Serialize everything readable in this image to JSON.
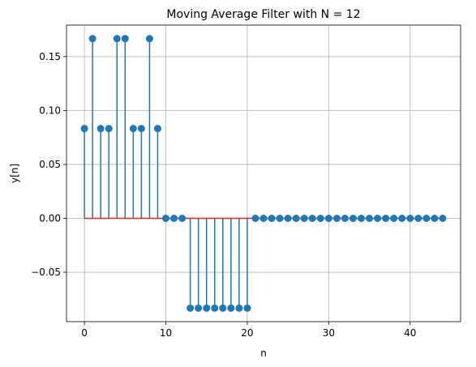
{
  "chart_data": {
    "type": "stem",
    "title": "Moving Average Filter with N = 12",
    "xlabel": "n",
    "ylabel": "y[n]",
    "x": [
      0,
      1,
      2,
      3,
      4,
      5,
      6,
      7,
      8,
      9,
      10,
      11,
      12,
      13,
      14,
      15,
      16,
      17,
      18,
      19,
      20,
      21,
      22,
      23,
      24,
      25,
      26,
      27,
      28,
      29,
      30,
      31,
      32,
      33,
      34,
      35,
      36,
      37,
      38,
      39,
      40,
      41,
      42,
      43,
      44
    ],
    "y": [
      0.0833,
      0.1667,
      0.0833,
      0.0833,
      0.1667,
      0.1667,
      0.0833,
      0.0833,
      0.1667,
      0.0833,
      0,
      0,
      0,
      -0.0833,
      -0.0833,
      -0.0833,
      -0.0833,
      -0.0833,
      -0.0833,
      -0.0833,
      -0.0833,
      0,
      0,
      0,
      0,
      0,
      0,
      0,
      0,
      0,
      0,
      0,
      0,
      0,
      0,
      0,
      0,
      0,
      0,
      0,
      0,
      0,
      0,
      0,
      0
    ],
    "xlim": [
      -2.2,
      46.2
    ],
    "ylim": [
      -0.0958,
      0.1792
    ],
    "xticks": [
      0,
      10,
      20,
      30,
      40
    ],
    "xtick_labels": [
      "0",
      "10",
      "20",
      "30",
      "40"
    ],
    "yticks": [
      -0.05,
      0,
      0.05,
      0.1,
      0.15
    ],
    "ytick_labels": [
      "−0.05",
      "0.00",
      "0.05",
      "0.10",
      "0.15"
    ],
    "grid": true,
    "colors": {
      "stem": "#1f77b4",
      "marker": "#1f77b4",
      "baseline": "#d62728",
      "grid": "#b0b0b0"
    }
  }
}
